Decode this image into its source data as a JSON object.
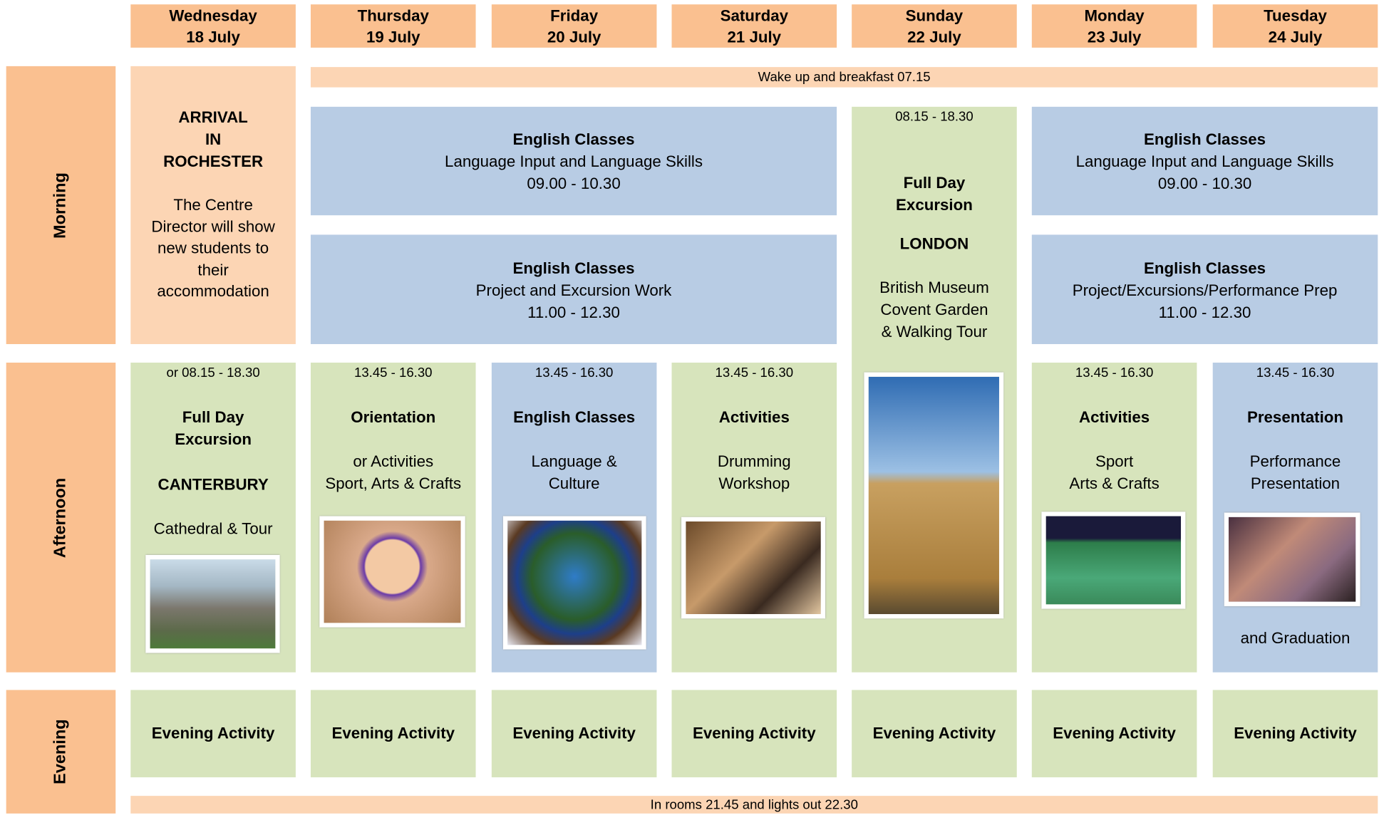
{
  "header": {
    "days": [
      {
        "day": "Wednesday",
        "date": "18 July"
      },
      {
        "day": "Thursday",
        "date": "19 July"
      },
      {
        "day": "Friday",
        "date": "20 July"
      },
      {
        "day": "Saturday",
        "date": "21 July"
      },
      {
        "day": "Sunday",
        "date": "22 July"
      },
      {
        "day": "Monday",
        "date": "23 July"
      },
      {
        "day": "Tuesday",
        "date": "24 July"
      }
    ]
  },
  "row_labels": [
    "Morning",
    "Afternoon",
    "Evening"
  ],
  "wake_up": "Wake up and breakfast 07.15",
  "lights_out": "In rooms 21.45 and lights out 22.30",
  "arrival": {
    "title_lines": [
      "ARRIVAL",
      "IN",
      "ROCHESTER"
    ],
    "text": "The Centre Director will show new students to their accommodation"
  },
  "morning_classes": [
    {
      "title": "English Classes",
      "subtitle": "Language Input and Language Skills",
      "time": "09.00 - 10.30"
    },
    {
      "title": "English Classes",
      "subtitle": "Project and Excursion Work",
      "time": "11.00 - 12.30"
    },
    {
      "title": "English Classes",
      "subtitle": "Language Input and Language Skills",
      "time": "09.00 - 10.30"
    },
    {
      "title": "English Classes",
      "subtitle": "Project/Excursions/Performance Prep",
      "time": "11.00 - 12.30"
    }
  ],
  "sunday": {
    "time": "08.15 - 18.30",
    "title_lines": [
      "Full Day",
      "Excursion"
    ],
    "place": "LONDON",
    "details": [
      "British Museum",
      "Covent Garden",
      "& Walking Tour"
    ]
  },
  "afternoon": [
    {
      "time": "or 08.15 - 18.30",
      "title_lines": [
        "Full Day",
        "Excursion"
      ],
      "place": "CANTERBURY",
      "details": [
        "Cathedral & Tour"
      ]
    },
    {
      "time": "13.45 - 16.30",
      "title_lines": [
        "Orientation"
      ],
      "details": [
        "or Activities",
        "Sport, Arts & Crafts"
      ]
    },
    {
      "time": "13.45 - 16.30",
      "title_lines": [
        "English Classes"
      ],
      "details": [
        "Language &",
        "Culture"
      ]
    },
    {
      "time": "13.45 - 16.30",
      "title_lines": [
        "Activities"
      ],
      "details": [
        "Drumming",
        "Workshop"
      ]
    },
    {
      "time": "13.45 - 16.30",
      "title_lines": [
        "Activities"
      ],
      "details": [
        "Sport",
        "Arts & Crafts"
      ]
    },
    {
      "time": "13.45 - 16.30",
      "title_lines": [
        "Presentation"
      ],
      "details": [
        "Performance",
        "Presentation"
      ],
      "footer": "and Graduation"
    }
  ],
  "evening": [
    "Evening Activity",
    "Evening Activity",
    "Evening Activity",
    "Evening Activity",
    "Evening Activity",
    "Evening Activity",
    "Evening Activity"
  ]
}
